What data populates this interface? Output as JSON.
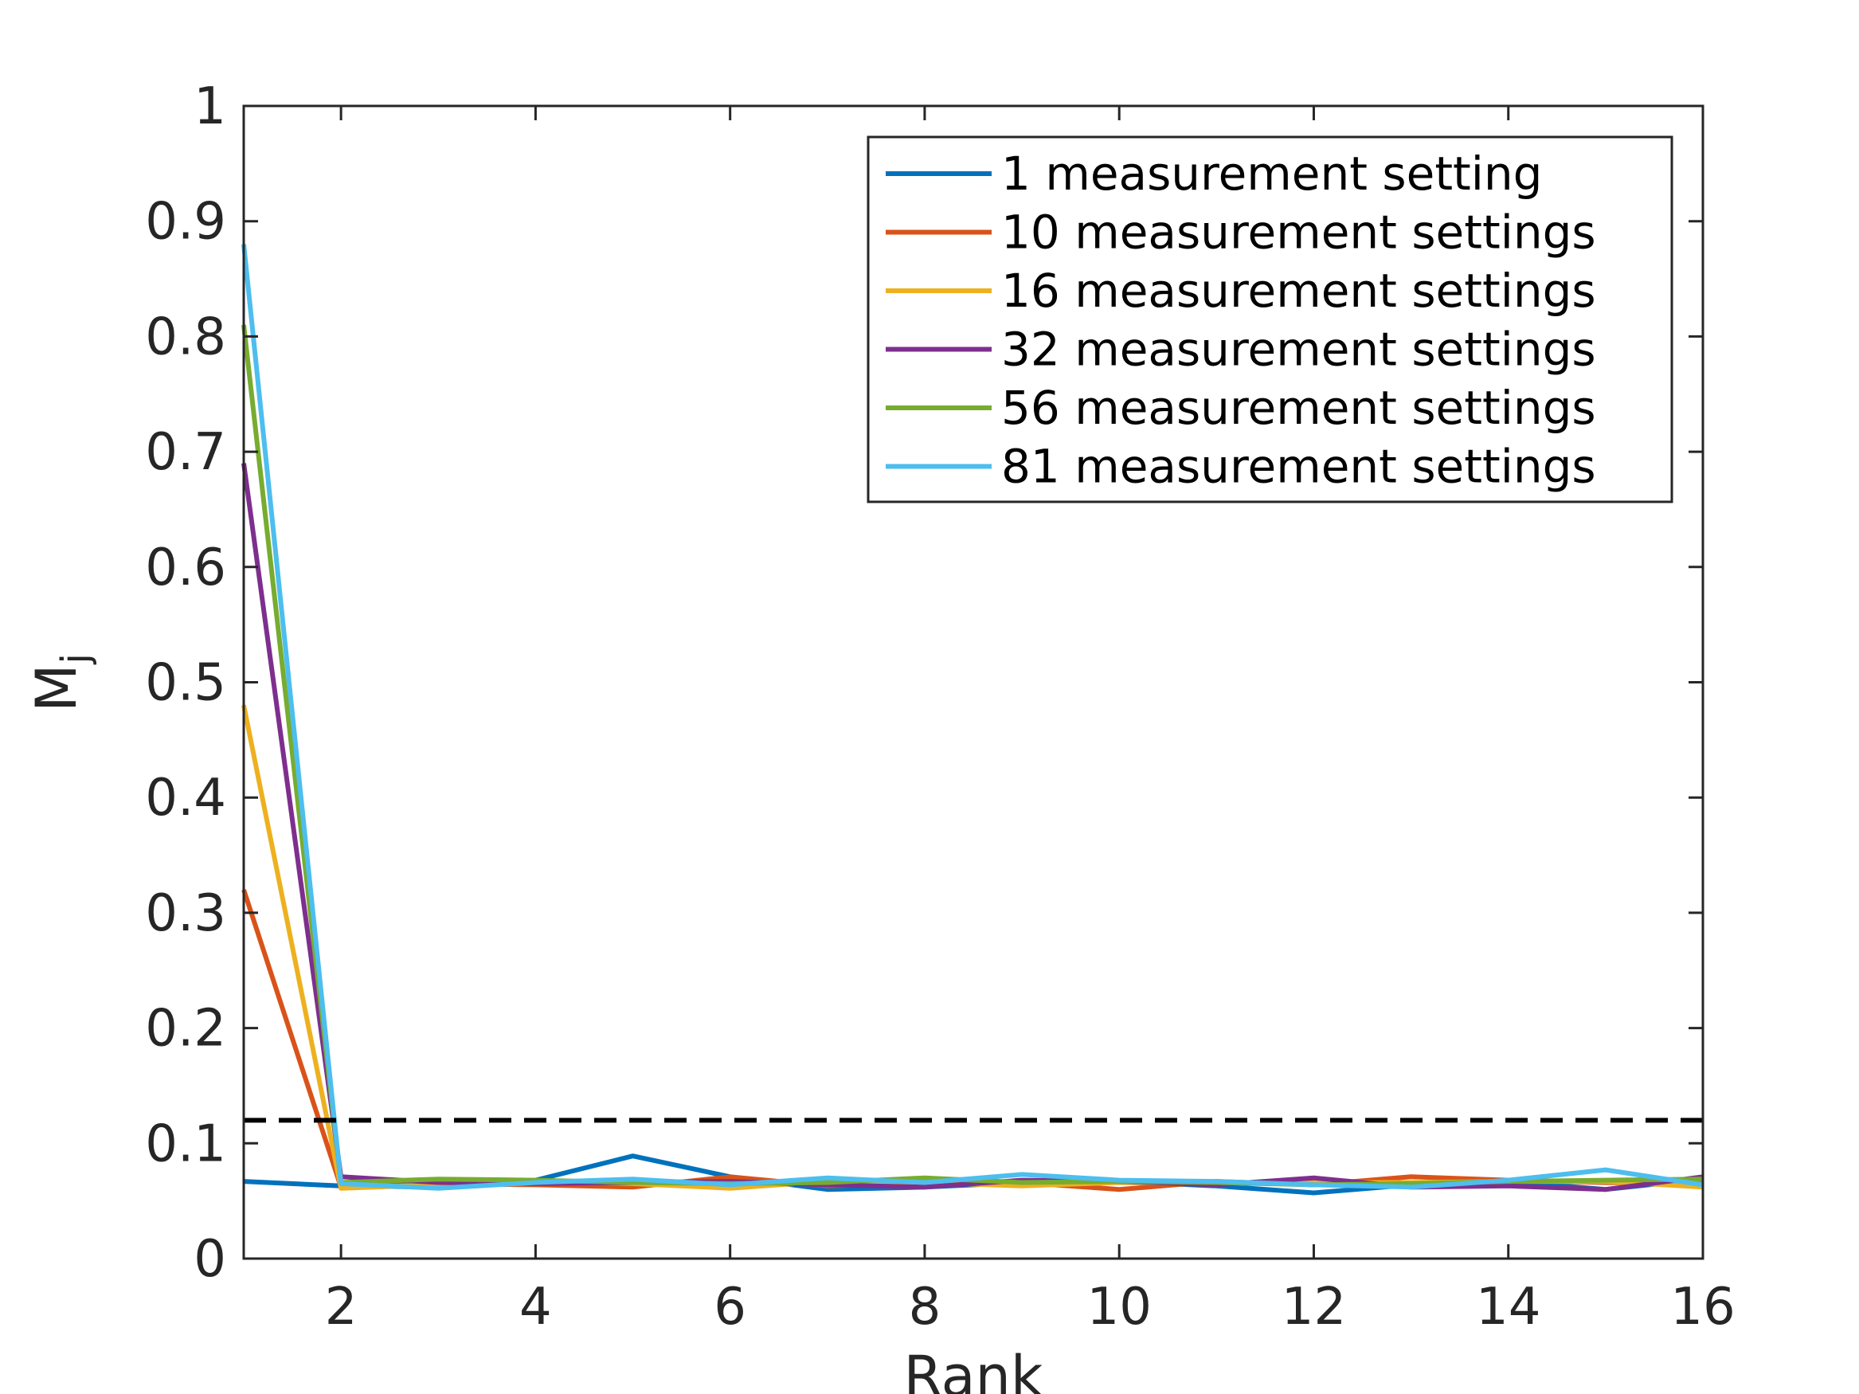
{
  "chart_data": {
    "type": "line",
    "xlabel": "Rank",
    "ylabel": "M",
    "ylabel_subscript": "j",
    "xlim": [
      1,
      16
    ],
    "ylim": [
      0,
      1
    ],
    "xticks": [
      2,
      4,
      6,
      8,
      10,
      12,
      14,
      16
    ],
    "xtick_labels": [
      "2",
      "4",
      "6",
      "8",
      "10",
      "12",
      "14",
      "16"
    ],
    "yticks": [
      0,
      0.1,
      0.2,
      0.3,
      0.4,
      0.5,
      0.6,
      0.7,
      0.8,
      0.9,
      1
    ],
    "ytick_labels": [
      "0",
      "0.1",
      "0.2",
      "0.3",
      "0.4",
      "0.5",
      "0.6",
      "0.7",
      "0.8",
      "0.9",
      "1"
    ],
    "grid": false,
    "legend_position": "top-right",
    "x": [
      1,
      2,
      3,
      4,
      5,
      6,
      7,
      8,
      9,
      10,
      11,
      12,
      13,
      14,
      15,
      16
    ],
    "series": [
      {
        "name": "1 measurement setting",
        "color": "#0072BD",
        "values": [
          0.067,
          0.063,
          0.062,
          0.068,
          0.089,
          0.071,
          0.06,
          0.062,
          0.066,
          0.067,
          0.063,
          0.057,
          0.064,
          0.067,
          0.06,
          0.069
        ]
      },
      {
        "name": "10 measurement settings",
        "color": "#D95319",
        "values": [
          0.32,
          0.062,
          0.065,
          0.064,
          0.062,
          0.071,
          0.063,
          0.065,
          0.066,
          0.06,
          0.067,
          0.064,
          0.071,
          0.068,
          0.066,
          0.065
        ]
      },
      {
        "name": "16 measurement settings",
        "color": "#EDB120",
        "values": [
          0.48,
          0.061,
          0.064,
          0.067,
          0.065,
          0.061,
          0.067,
          0.066,
          0.063,
          0.066,
          0.065,
          0.066,
          0.066,
          0.067,
          0.067,
          0.062
        ]
      },
      {
        "name": "32 measurement settings",
        "color": "#7E2F8E",
        "values": [
          0.69,
          0.071,
          0.066,
          0.065,
          0.066,
          0.067,
          0.064,
          0.062,
          0.068,
          0.067,
          0.064,
          0.07,
          0.062,
          0.063,
          0.06,
          0.071
        ]
      },
      {
        "name": "56 measurement settings",
        "color": "#77AC30",
        "values": [
          0.81,
          0.066,
          0.069,
          0.068,
          0.066,
          0.065,
          0.066,
          0.07,
          0.066,
          0.067,
          0.066,
          0.064,
          0.065,
          0.067,
          0.068,
          0.069
        ]
      },
      {
        "name": "81 measurement settings",
        "color": "#4DBEEE",
        "values": [
          0.88,
          0.065,
          0.061,
          0.066,
          0.069,
          0.064,
          0.07,
          0.066,
          0.073,
          0.068,
          0.067,
          0.064,
          0.062,
          0.068,
          0.077,
          0.064
        ]
      }
    ],
    "reference_line": {
      "y": 0.12,
      "style": "dashed",
      "color": "#000000"
    }
  }
}
